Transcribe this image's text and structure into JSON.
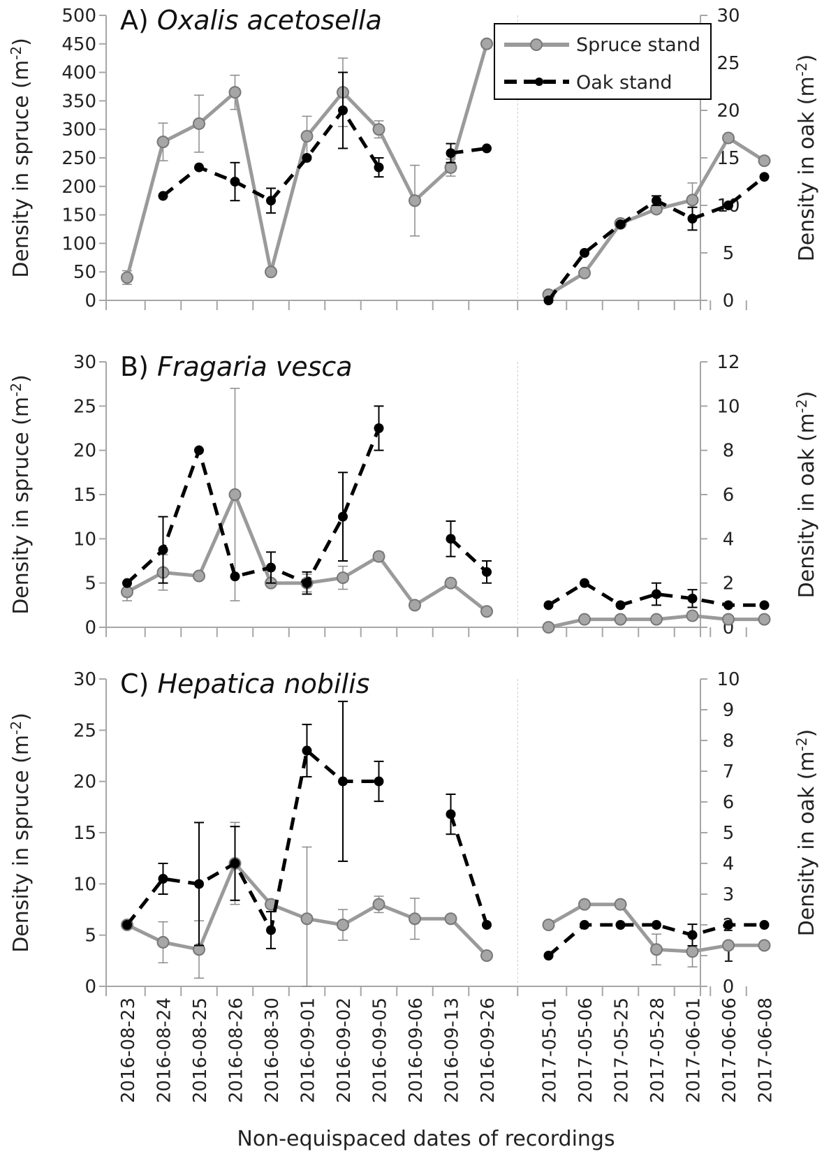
{
  "figure": {
    "x_axis_label": "Non-equispaced dates of recordings"
  },
  "legend": {
    "spruce_label": "Spruce stand",
    "oak_label": "Oak stand"
  },
  "colors": {
    "spruce_line": "#9a9a9a",
    "spruce_marker": "#a6a6a6",
    "oak_line": "#000000",
    "axis": "#a6a6a6",
    "divider": "#cccccc"
  },
  "chart_data": [
    {
      "type": "line",
      "panel": "A",
      "title_prefix": "A) ",
      "title_species": "Oxalis acetosella",
      "categories": [
        "2016-08-23",
        "2016-08-24",
        "2016-08-25",
        "2016-08-26",
        "2016-08-30",
        "2016-09-01",
        "2016-09-02",
        "2016-09-05",
        "2016-09-06",
        "2016-09-13",
        "2016-09-26",
        "2017-05-01",
        "2017-05-06",
        "2017-05-25",
        "2017-05-28",
        "2017-06-01",
        "2017-06-06",
        "2017-06-08"
      ],
      "ylabel_left": "Density in spruce (m",
      "ylabel_right": "Density in oak (m",
      "ylabel_sup": "-2",
      "ylim_left": [
        0,
        500
      ],
      "ylim_right": [
        0,
        30
      ],
      "yticks_left": [
        0,
        50,
        100,
        150,
        200,
        250,
        300,
        350,
        400,
        450,
        500
      ],
      "yticks_right": [
        0,
        5,
        10,
        15,
        20,
        25,
        30
      ],
      "series": [
        {
          "name": "Spruce stand",
          "axis": "left",
          "values": [
            40,
            278,
            310,
            365,
            50,
            288,
            365,
            300,
            175,
            233,
            450,
            10,
            48,
            135,
            160,
            176,
            285,
            245
          ],
          "errors": [
            12,
            33,
            50,
            30,
            null,
            35,
            60,
            15,
            62,
            15,
            null,
            null,
            null,
            null,
            null,
            30,
            null,
            null
          ]
        },
        {
          "name": "Oak stand",
          "axis": "right",
          "values": [
            null,
            11,
            14,
            12.5,
            10.5,
            15,
            20,
            14,
            null,
            15.5,
            16,
            0,
            5,
            8,
            10.5,
            8.6,
            10,
            13
          ],
          "errors": [
            null,
            null,
            null,
            2,
            1.3,
            null,
            4,
            1,
            null,
            1,
            null,
            null,
            null,
            null,
            0.5,
            1.2,
            null,
            null
          ]
        }
      ]
    },
    {
      "type": "line",
      "panel": "B",
      "title_prefix": "B) ",
      "title_species": "Fragaria vesca",
      "categories": [
        "2016-08-23",
        "2016-08-24",
        "2016-08-25",
        "2016-08-26",
        "2016-08-30",
        "2016-09-01",
        "2016-09-02",
        "2016-09-05",
        "2016-09-06",
        "2016-09-13",
        "2016-09-26",
        "2017-05-01",
        "2017-05-06",
        "2017-05-25",
        "2017-05-28",
        "2017-06-01",
        "2017-06-06",
        "2017-06-08"
      ],
      "ylabel_left": "Density in spruce (m",
      "ylabel_right": "Density in oak (m",
      "ylabel_sup": "-2",
      "ylim_left": [
        0,
        30
      ],
      "ylim_right": [
        0,
        12
      ],
      "yticks_left": [
        0,
        5,
        10,
        15,
        20,
        25,
        30
      ],
      "yticks_right": [
        0,
        2,
        4,
        6,
        8,
        10,
        12
      ],
      "series": [
        {
          "name": "Spruce stand",
          "axis": "left",
          "values": [
            4,
            6.2,
            5.8,
            15,
            5,
            5,
            5.6,
            8,
            2.5,
            5,
            1.8,
            0,
            0.9,
            0.9,
            0.9,
            1.3,
            0.9,
            0.9
          ],
          "errors": [
            1,
            2,
            null,
            12,
            null,
            1,
            1.3,
            0.5,
            null,
            null,
            null,
            null,
            null,
            null,
            null,
            0.4,
            null,
            null
          ]
        },
        {
          "name": "Oak stand",
          "axis": "right",
          "values": [
            2,
            3.5,
            8,
            2.3,
            2.7,
            2,
            5,
            9,
            null,
            4,
            2.5,
            1,
            2,
            1,
            1.5,
            1.3,
            1,
            1
          ],
          "errors": [
            null,
            1.5,
            null,
            null,
            0.7,
            0.5,
            2,
            1,
            null,
            0.8,
            0.5,
            null,
            null,
            null,
            0.5,
            0.4,
            null,
            null
          ]
        }
      ]
    },
    {
      "type": "line",
      "panel": "C",
      "title_prefix": "C) ",
      "title_species": "Hepatica nobilis",
      "categories": [
        "2016-08-23",
        "2016-08-24",
        "2016-08-25",
        "2016-08-26",
        "2016-08-30",
        "2016-09-01",
        "2016-09-02",
        "2016-09-05",
        "2016-09-06",
        "2016-09-13",
        "2016-09-26",
        "2017-05-01",
        "2017-05-06",
        "2017-05-25",
        "2017-05-28",
        "2017-06-01",
        "2017-06-06",
        "2017-06-08"
      ],
      "ylabel_left": "Density in spruce (m",
      "ylabel_right": "Density in oak (m",
      "ylabel_sup": "-2",
      "ylim_left": [
        0,
        30
      ],
      "ylim_right": [
        0,
        10
      ],
      "yticks_left": [
        0,
        5,
        10,
        15,
        20,
        25,
        30
      ],
      "yticks_right": [
        0,
        1,
        2,
        3,
        4,
        5,
        6,
        7,
        8,
        9,
        10
      ],
      "series": [
        {
          "name": "Spruce stand",
          "axis": "left",
          "values": [
            6,
            4.3,
            3.6,
            12,
            8,
            6.6,
            6,
            8,
            6.6,
            6.6,
            3,
            6,
            8,
            8,
            3.6,
            3.4,
            4,
            4
          ],
          "errors": [
            null,
            2,
            2.8,
            4,
            null,
            7,
            1.5,
            0.8,
            2,
            null,
            null,
            null,
            null,
            null,
            1.5,
            1.5,
            null,
            null
          ]
        },
        {
          "name": "Oak stand",
          "axis": "right",
          "values": [
            2,
            3.5,
            3.33,
            4,
            1.83,
            7.67,
            6.67,
            6.67,
            null,
            5.6,
            2,
            1,
            2,
            2,
            2,
            1.67,
            2,
            2
          ],
          "errors": [
            null,
            0.5,
            2,
            1.2,
            0.6,
            0.85,
            2.6,
            0.65,
            null,
            0.65,
            null,
            null,
            null,
            null,
            null,
            0.35,
            null,
            null
          ]
        }
      ]
    }
  ]
}
